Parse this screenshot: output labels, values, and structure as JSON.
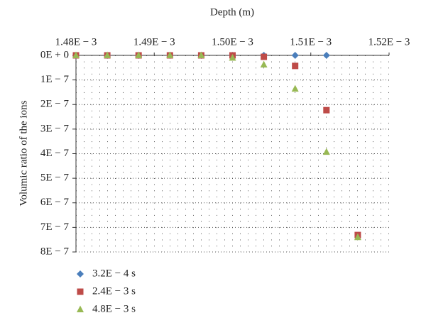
{
  "chart_data": {
    "type": "scatter",
    "x_label": "Depth (m)",
    "y_label": "Volumic ratio of the ions",
    "x": [
      0.00148,
      0.001484,
      0.001488,
      0.001492,
      0.001496,
      0.0015,
      0.001504,
      0.001508,
      0.001512,
      0.001516
    ],
    "series": [
      {
        "name": "3.2E − 4 s",
        "color": "#4a7ebb",
        "marker": "diamond",
        "values": [
          0,
          0,
          0,
          0,
          0,
          0,
          0,
          0,
          0,
          null
        ]
      },
      {
        "name": "2.4E − 3 s",
        "color": "#be4b48",
        "marker": "square",
        "values": [
          0,
          0,
          0,
          0,
          0,
          0,
          6e-09,
          4.3e-08,
          2.23e-07,
          7.31e-07
        ]
      },
      {
        "name": "4.8E − 3 s",
        "color": "#98b954",
        "marker": "triangle",
        "values": [
          0,
          0,
          0,
          0,
          0,
          1e-08,
          3.8e-08,
          1.36e-07,
          3.93e-07,
          7.4e-07
        ]
      }
    ],
    "xlim": [
      0.00148,
      0.00152
    ],
    "xticks": [
      {
        "value": 0.00148,
        "label": "1.48E − 3"
      },
      {
        "value": 0.00149,
        "label": "1.49E − 3"
      },
      {
        "value": 0.0015,
        "label": "1.50E − 3"
      },
      {
        "value": 0.00151,
        "label": "1.51E − 3"
      },
      {
        "value": 0.00152,
        "label": "1.52E − 3"
      }
    ],
    "ylim": [
      0,
      8e-07
    ],
    "yticks": [
      {
        "value": 0,
        "label": "0E + 0"
      },
      {
        "value": 1e-07,
        "label": "1E − 7"
      },
      {
        "value": 2e-07,
        "label": "2E − 7"
      },
      {
        "value": 3e-07,
        "label": "3E − 7"
      },
      {
        "value": 4e-07,
        "label": "4E − 7"
      },
      {
        "value": 5e-07,
        "label": "5E − 7"
      },
      {
        "value": 6e-07,
        "label": "6E − 7"
      },
      {
        "value": 7e-07,
        "label": "7E − 7"
      },
      {
        "value": 8e-07,
        "label": "8E − 7"
      }
    ],
    "y_inverted": true,
    "x_axis_position": "top",
    "grid": true,
    "legend_position": "bottom-left"
  }
}
